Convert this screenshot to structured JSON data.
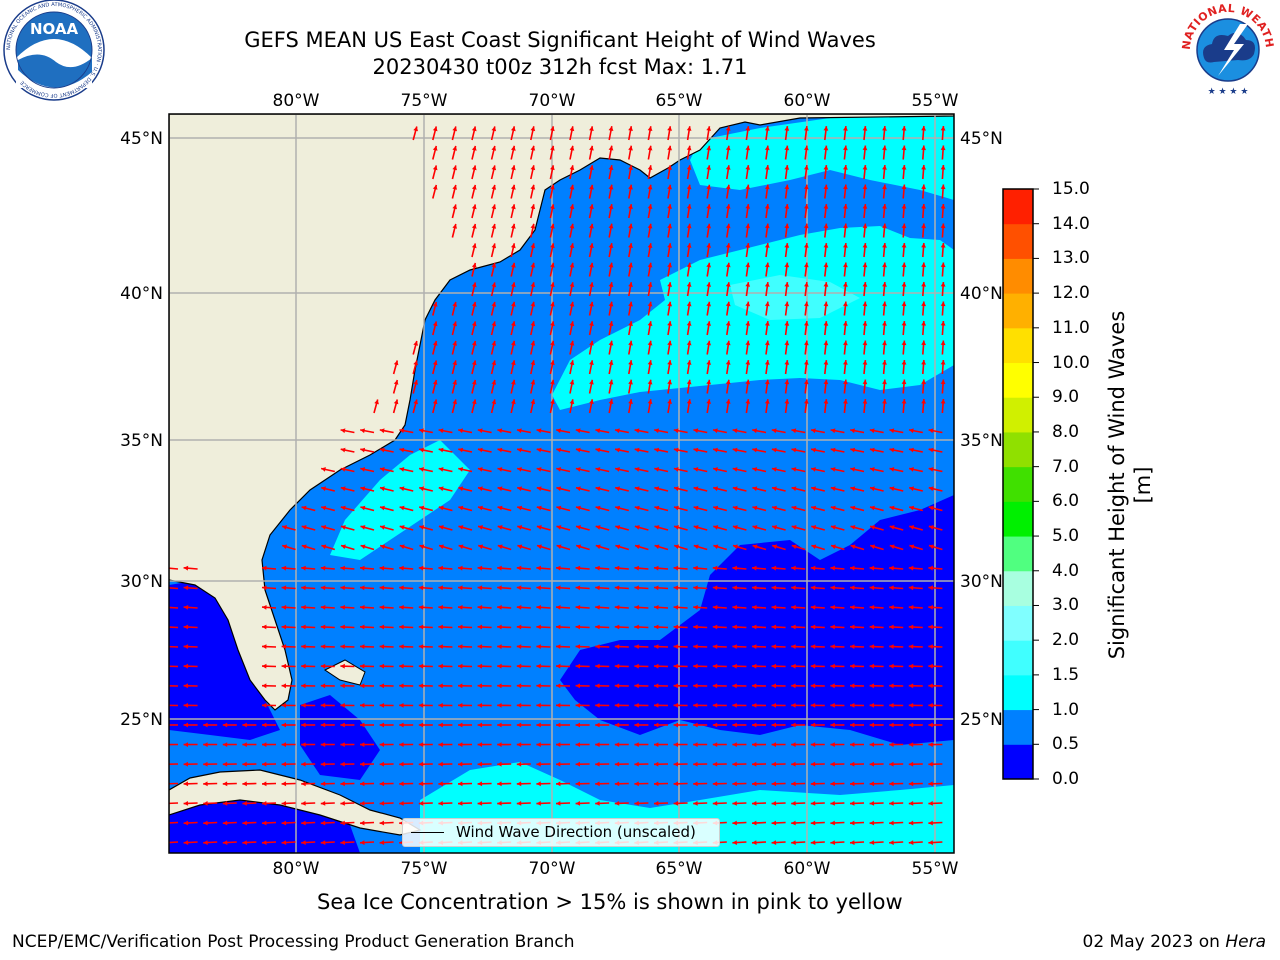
{
  "header": {
    "title_line1": "GEFS MEAN US East Coast Significant Height of Wind Waves",
    "title_line2": "20230430 t00z 312h fcst   Max: 1.71"
  },
  "logos": {
    "left": {
      "text": "NOAA",
      "ring_text": "NATIONAL OCEANIC AND ATMOSPHERIC ADMINISTRATION · U.S. DEPARTMENT OF COMMERCE"
    },
    "right": {
      "ring_text": "NATIONAL WEATHER SERVICE"
    }
  },
  "map": {
    "lon_labels": [
      "80°W",
      "75°W",
      "70°W",
      "65°W",
      "60°W",
      "55°W"
    ],
    "lat_labels": [
      "45°N",
      "40°N",
      "35°N",
      "30°N",
      "25°N"
    ],
    "lon_values": [
      -80,
      -75,
      -70,
      -65,
      -60,
      -55
    ],
    "lat_values": [
      45,
      40,
      35,
      30,
      25
    ],
    "lon_range": [
      -85,
      -54.3
    ],
    "lat_range": [
      20.3,
      46
    ],
    "land_color": "#efeedb",
    "legend_label": "Wind Wave Direction (unscaled)",
    "arrow_color": "#ff0000"
  },
  "colorbar": {
    "label": "Significant Height of Wind Waves [m]",
    "ticks": [
      "0.0",
      "0.5",
      "1.0",
      "1.5",
      "2.0",
      "3.0",
      "4.0",
      "5.0",
      "6.0",
      "7.0",
      "8.0",
      "9.0",
      "10.0",
      "11.0",
      "12.0",
      "13.0",
      "14.0",
      "15.0"
    ],
    "colors": [
      "#0000ff",
      "#0080ff",
      "#00ffff",
      "#40ffff",
      "#80ffff",
      "#a8ffe0",
      "#50ff80",
      "#00f000",
      "#40e000",
      "#90e000",
      "#d0f000",
      "#ffff00",
      "#ffe000",
      "#ffb000",
      "#ff8c00",
      "#ff5000",
      "#ff2000"
    ]
  },
  "notes": {
    "ice": "Sea Ice Concentration > 15% is shown in pink to yellow",
    "footer_left": "NCEP/EMC/Verification Post Processing Product Generation Branch",
    "footer_date": "02 May 2023 on ",
    "footer_host": "Hera"
  }
}
